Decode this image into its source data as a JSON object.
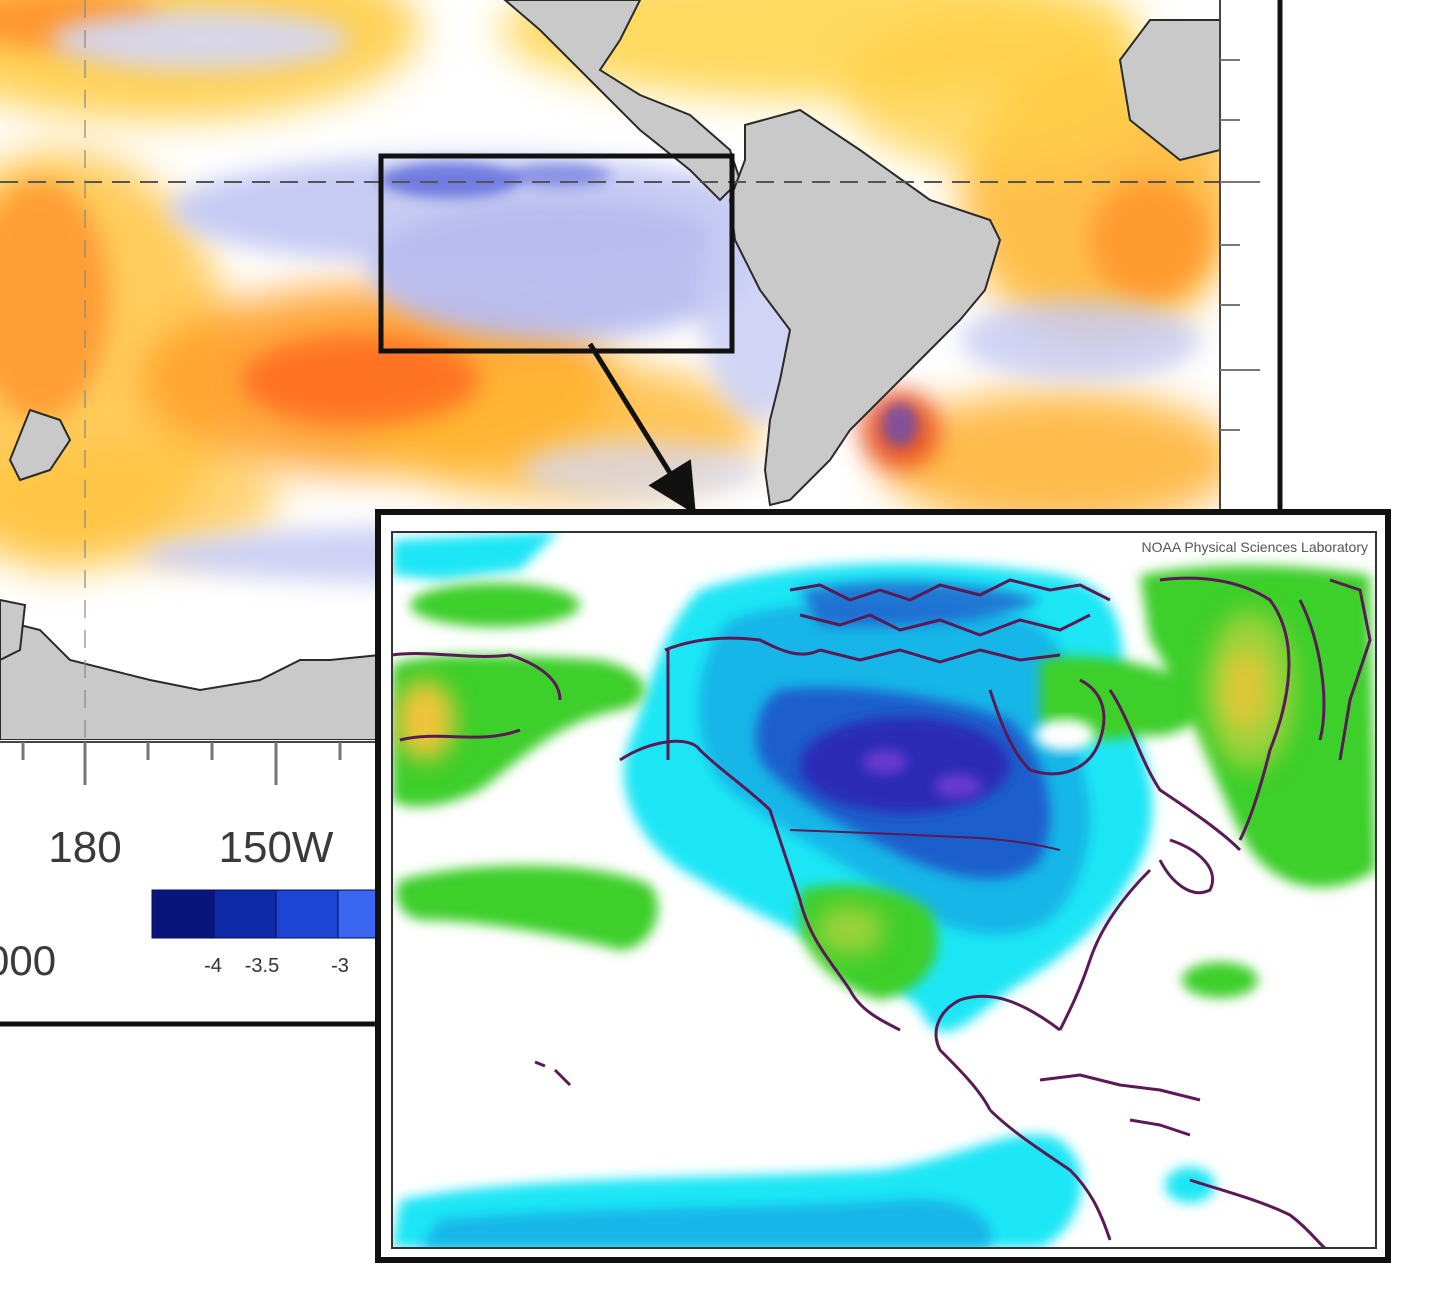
{
  "main_map": {
    "lon_labels": [
      "180",
      "150W"
    ],
    "legend_end_label": "000",
    "colorbar": {
      "colors": [
        "#08157a",
        "#0f2aa8",
        "#1d45d4",
        "#3a66f0",
        "#6f8cf0"
      ],
      "tick_labels": [
        "-4",
        "-3.5",
        "-3"
      ]
    }
  },
  "inset_map": {
    "credit": "NOAA Physical Sciences Laboratory"
  },
  "palette": {
    "land": "#c9c9c9",
    "frame": "#111111",
    "warm": [
      "#ffd84a",
      "#ffb42a",
      "#ff7a1e",
      "#e84416"
    ],
    "cool_main": "#c4c8f2",
    "inset_blues": [
      "#1ee6f5",
      "#16b6e8",
      "#1f5fcc",
      "#2a2cb6",
      "#6b3ad0"
    ],
    "inset_greens": [
      "#3ccf2a",
      "#9ad23a",
      "#f0c43a"
    ],
    "coastline": "#5a1a55"
  }
}
